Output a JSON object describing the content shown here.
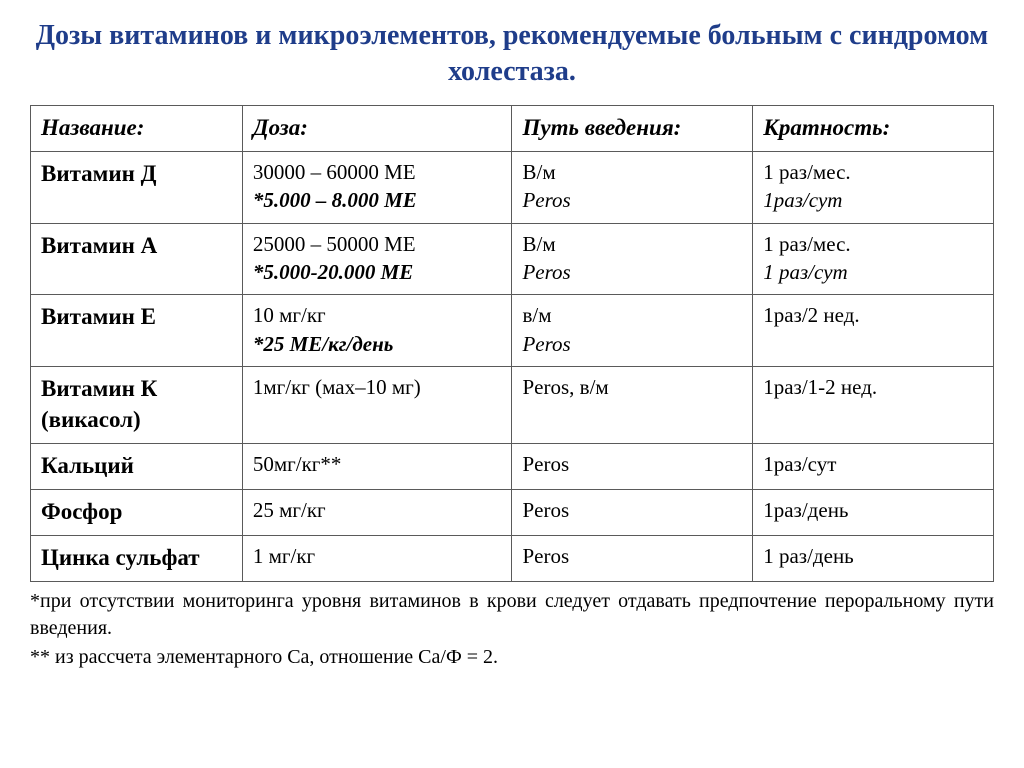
{
  "title": "Дозы витаминов и микроэлементов, рекомендуемые больным с синдромом холестаза.",
  "columns": {
    "name": "Название:",
    "dose": "Доза:",
    "route": "Путь введения:",
    "frequency": "Кратность:"
  },
  "rows": [
    {
      "name": "Витамин Д",
      "dose_main": "30000 – 60000 МЕ",
      "dose_alt": "*5.000 – 8.000 МЕ",
      "route_main": "В/м",
      "route_alt": "Peros",
      "freq_main": "1 раз/мес.",
      "freq_alt": "1раз/сут"
    },
    {
      "name": "Витамин А",
      "dose_main": "25000 – 50000 МЕ",
      "dose_alt": "*5.000-20.000 МЕ",
      "route_main": "В/м",
      "route_alt": "Peros",
      "freq_main": "1 раз/мес.",
      "freq_alt": "1 раз/сут"
    },
    {
      "name": "Витамин Е",
      "dose_main": "10 мг/кг",
      "dose_alt": "*25 МЕ/кг/день",
      "route_main": "в/м",
      "route_alt": "Peros",
      "freq_main": "1раз/2 нед.",
      "freq_alt": ""
    },
    {
      "name": "Витамин К (викасол)",
      "dose_main": "1мг/кг (мах–10 мг)",
      "dose_alt": "",
      "route_main": "Peros, в/м",
      "route_alt": "",
      "freq_main": "1раз/1-2 нед.",
      "freq_alt": ""
    },
    {
      "name": "Кальций",
      "dose_main": "50мг/кг**",
      "dose_alt": "",
      "route_main": "Peros",
      "route_alt": "",
      "freq_main": "1раз/сут",
      "freq_alt": ""
    },
    {
      "name": "Фосфор",
      "dose_main": "25 мг/кг",
      "dose_alt": "",
      "route_main": "Peros",
      "route_alt": "",
      "freq_main": "1раз/день",
      "freq_alt": ""
    },
    {
      "name": "Цинка сульфат",
      "dose_main": "1 мг/кг",
      "dose_alt": "",
      "route_main": "Peros",
      "route_alt": "",
      "freq_main": "1 раз/день",
      "freq_alt": ""
    }
  ],
  "footnotes": {
    "n1": "*при отсутствии мониторинга уровня витаминов в крови следует отдавать предпочтение пероральному пути введения.",
    "n2": "** из рассчета элементарного Са, отношение Са/Ф = 2."
  },
  "style": {
    "title_color": "#1f3d8a",
    "title_fontsize": 28,
    "border_color": "#5a5a5a",
    "body_fontsize": 21,
    "header_fontsize": 23,
    "background": "#ffffff",
    "font_family": "Times New Roman serif"
  }
}
